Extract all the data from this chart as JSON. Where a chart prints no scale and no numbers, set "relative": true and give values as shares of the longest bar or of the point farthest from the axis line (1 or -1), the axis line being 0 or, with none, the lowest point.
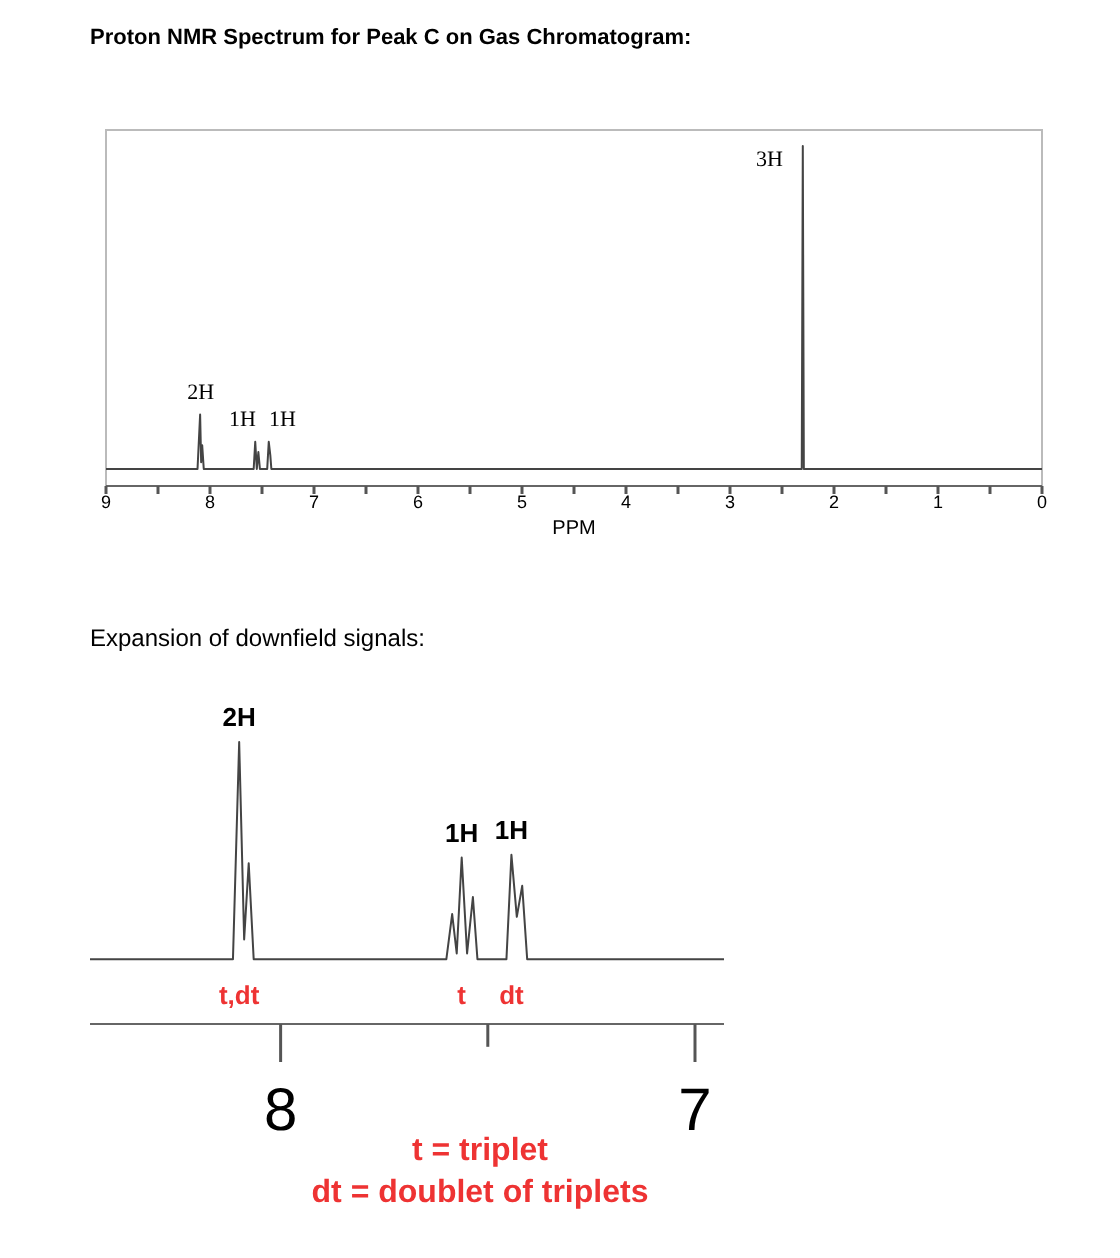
{
  "chart_data": [
    {
      "type": "line",
      "title": "Proton NMR Spectrum for Peak C on Gas Chromatogram:",
      "xlabel": "PPM",
      "relative": true,
      "color": "#444444",
      "xlim": [
        9,
        0
      ],
      "xticks": [
        9,
        {
          "value": 8.5,
          "label": null
        },
        8,
        {
          "value": 7.5,
          "label": null
        },
        7,
        {
          "value": 6.5,
          "label": null
        },
        6,
        {
          "value": 5.5,
          "label": null
        },
        5,
        {
          "value": 4.5,
          "label": null
        },
        4,
        {
          "value": 3.5,
          "label": null
        },
        3,
        {
          "value": 2.5,
          "label": null
        },
        2,
        {
          "value": 1.5,
          "label": null
        },
        1,
        {
          "value": 0.5,
          "label": null
        },
        0
      ],
      "x": [
        9,
        8.12,
        8.095,
        8.085,
        8.075,
        8.06,
        7.58,
        7.565,
        7.55,
        7.535,
        7.52,
        7.45,
        7.435,
        7.42,
        7.41,
        2.31,
        2.3,
        2.29,
        0
      ],
      "values": [
        0.05,
        0.05,
        0.21,
        0.07,
        0.12,
        0.05,
        0.05,
        0.13,
        0.05,
        0.1,
        0.05,
        0.05,
        0.13,
        0.09,
        0.05,
        0.05,
        1,
        0.05,
        0.05
      ],
      "annotations": [
        {
          "text": "2H",
          "x": 8.09,
          "y": 0.21
        },
        {
          "text": "1H",
          "x": 7.56,
          "y": 0.13
        },
        {
          "text": "1H",
          "x": 7.43,
          "y": 0.13
        },
        {
          "text": "3H",
          "x": 2.3,
          "y": 1
        }
      ]
    },
    {
      "type": "line",
      "title": "Expansion of downfield signals:",
      "relative": true,
      "color": "#444444",
      "xlim": [
        8.46,
        6.93
      ],
      "xticks": [
        8,
        {
          "value": 7.5,
          "label": null
        },
        7
      ],
      "x": [
        8.46,
        8.115,
        8.1,
        8.088,
        8.077,
        8.065,
        7.6,
        7.586,
        7.575,
        7.563,
        7.55,
        7.536,
        7.525,
        7.455,
        7.443,
        7.43,
        7.417,
        7.405,
        6.93
      ],
      "values": [
        0.23,
        0.23,
        1,
        0.3,
        0.57,
        0.23,
        0.23,
        0.39,
        0.25,
        0.59,
        0.25,
        0.45,
        0.23,
        0.23,
        0.6,
        0.38,
        0.49,
        0.23,
        0.23
      ],
      "annotations": [
        {
          "text": "2H",
          "x": 8.1,
          "y": 1
        },
        {
          "text": "1H",
          "x": 7.563,
          "y": 0.59
        },
        {
          "text": "1H",
          "x": 7.443,
          "y": 0.6
        },
        "t,dt",
        "t",
        "dt",
        "t = triplet",
        "dt = doublet of triplets"
      ]
    }
  ]
}
